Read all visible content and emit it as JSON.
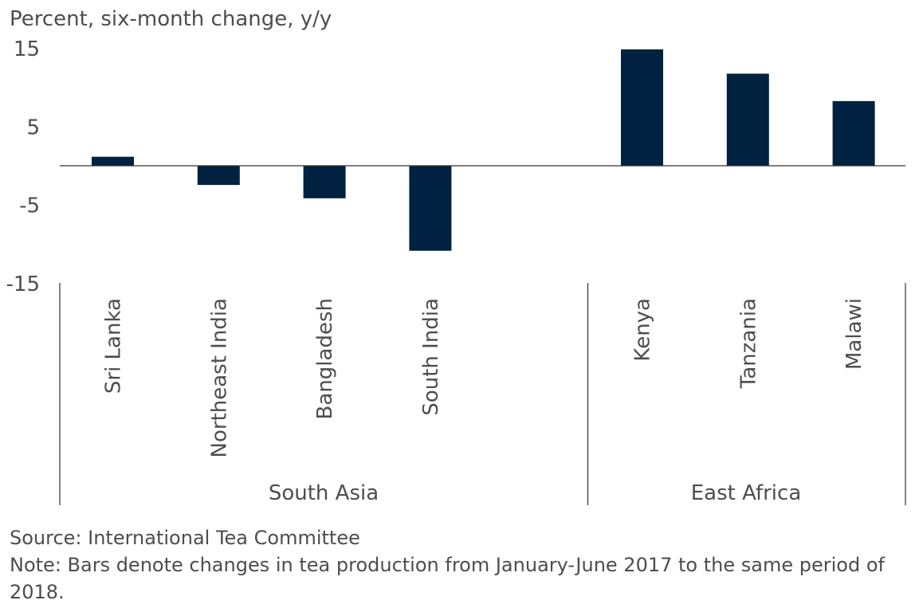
{
  "chart_data": {
    "type": "bar",
    "ylabel": "Percent, six-month change, y/y",
    "ylim": [
      -15,
      15
    ],
    "yticks": [
      "15",
      "5",
      "-5",
      "-15"
    ],
    "categories": [
      "Sri Lanka",
      "Northeast India",
      "Bangladesh",
      "South India",
      "",
      "Kenya",
      "Tanzania",
      "Malawi"
    ],
    "values": [
      1.2,
      -2.4,
      -4.1,
      -10.8,
      null,
      14.9,
      11.8,
      8.3
    ],
    "groups": [
      {
        "name": "South Asia",
        "categories": [
          "Sri Lanka",
          "Northeast India",
          "Bangladesh",
          "South India"
        ]
      },
      {
        "name": "East Africa",
        "categories": [
          "Kenya",
          "Tanzania",
          "Malawi"
        ]
      }
    ],
    "bar_color": "#00213f",
    "axis_color": "#333333",
    "grid": false,
    "legend": "none"
  },
  "footer": {
    "source": "Source: International Tea Committee",
    "note": "Note: Bars denote changes in tea production from January-June 2017 to the same period of 2018."
  }
}
